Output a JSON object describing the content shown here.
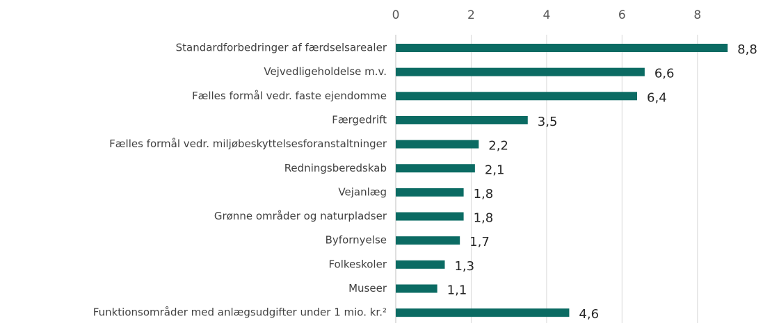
{
  "chart_data": {
    "type": "barh",
    "categories": [
      "Standardforbedringer af færdselsarealer",
      "Vejvedligeholdelse m.v.",
      "Fælles formål vedr. faste ejendomme",
      "Færgedrift",
      "Fælles formål vedr. miljøbeskyttelsesforanstaltninger",
      "Redningsberedskab",
      "Vejanlæg",
      "Grønne områder og naturpladser",
      "Byfornyelse",
      "Folkeskoler",
      "Museer",
      "Funktionsområder med anlægsudgifter under 1 mio. kr.²"
    ],
    "values": [
      8.8,
      6.6,
      6.4,
      3.5,
      2.2,
      2.1,
      1.8,
      1.8,
      1.7,
      1.3,
      1.1,
      4.6
    ],
    "value_labels": [
      "8,8",
      "6,6",
      "6,4",
      "3,5",
      "2,2",
      "2,1",
      "1,8",
      "1,8",
      "1,7",
      "1,3",
      "1,1",
      "4,6"
    ],
    "color": "#0b6b63",
    "xlim": [
      0,
      9
    ],
    "xticks": [
      0,
      2,
      4,
      6,
      8
    ],
    "grid": true
  }
}
